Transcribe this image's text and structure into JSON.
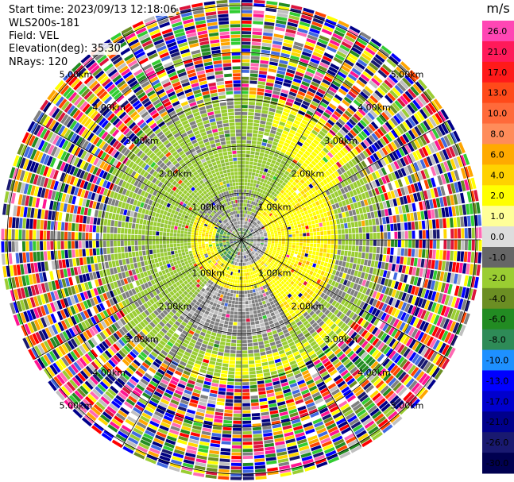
{
  "info": {
    "start_time": "Start time: 2023/09/13 12:18:06",
    "site": "WLS200s-181",
    "field": "Field: VEL",
    "elevation": "Elevation(deg): 35.30",
    "nrays": "NRays: 120"
  },
  "colorbar": {
    "unit": "m/s",
    "ticks": [
      "26.0",
      "21.0",
      "17.0",
      "13.0",
      "10.0",
      "8.0",
      "6.0",
      "4.0",
      "2.0",
      "1.0",
      "0.0",
      "-1.0",
      "-2.0",
      "-4.0",
      "-6.0",
      "-8.0",
      "-10.0",
      "-13.0",
      "-17.0",
      "-21.0",
      "-26.0",
      "-30.0"
    ],
    "colors": [
      "#ff46b4",
      "#ff1a5a",
      "#ff1a1a",
      "#ff4a1a",
      "#ff6a3a",
      "#ff8c5a",
      "#ffaa00",
      "#ffd200",
      "#ffff00",
      "#ffff99",
      "#dddddd",
      "#666666",
      "#9acd32",
      "#6b8e23",
      "#228b22",
      "#2e8b57",
      "#1e90ff",
      "#0000ff",
      "#0000cd",
      "#00008b",
      "#191970",
      "#000050"
    ]
  },
  "chart_data": {
    "type": "heatmap",
    "title": "",
    "field": "VEL",
    "units": "m/s",
    "color_range": [
      -30.0,
      26.0
    ],
    "range_rings_km": [
      1.0,
      2.0,
      3.0,
      4.0,
      5.0
    ],
    "ring_labels": [
      "1.00km",
      "2.00km",
      "3.00km",
      "4.00km",
      "5.00km"
    ],
    "spokes_deg": [
      0,
      30,
      60,
      90,
      120,
      150,
      180,
      210,
      240,
      270,
      300,
      330
    ],
    "nrays": 120,
    "elevation_deg": 35.3,
    "max_range_km": 5.1,
    "regions": [
      {
        "range_km": [
          0.0,
          0.5
        ],
        "velocity": "mixed green/grey/white (near zero)"
      },
      {
        "range_km": [
          0.5,
          1.0
        ],
        "velocity": "yellow (~+2 m/s) in east and south, green (~-2 m/s) in west"
      },
      {
        "range_km": [
          1.0,
          2.0
        ],
        "velocity": "green (~-2 m/s) north/west, grey (~-1 m/s) south, yellow (~+2) east"
      },
      {
        "range_km": [
          2.0,
          3.0
        ],
        "velocity": "green/grey band with yellow arc NE and SE"
      },
      {
        "range_km": [
          3.0,
          5.1
        ],
        "velocity": "noise: all colors"
      }
    ]
  }
}
